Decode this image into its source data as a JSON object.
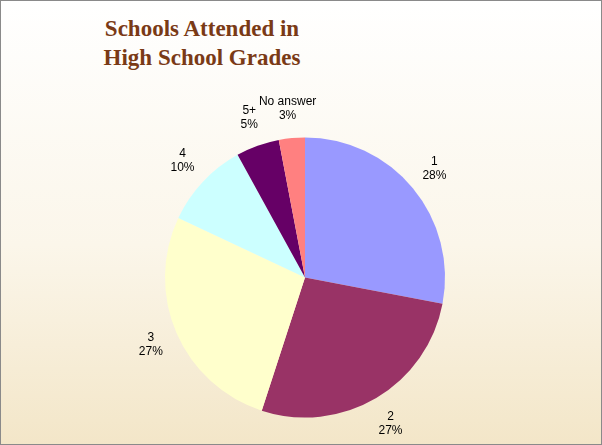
{
  "chart_data": {
    "type": "pie",
    "title": "Schools Attended in High School Grades",
    "categories": [
      "1",
      "2",
      "3",
      "4",
      "5+",
      "No answer"
    ],
    "values": [
      28,
      27,
      27,
      10,
      5,
      3
    ],
    "value_labels": [
      "28%",
      "27%",
      "27%",
      "10%",
      "5%",
      "3%"
    ],
    "colors": [
      "#9999ff",
      "#993366",
      "#ffffcc",
      "#ccffff",
      "#660066",
      "#ff8080"
    ],
    "data_labels": true
  }
}
